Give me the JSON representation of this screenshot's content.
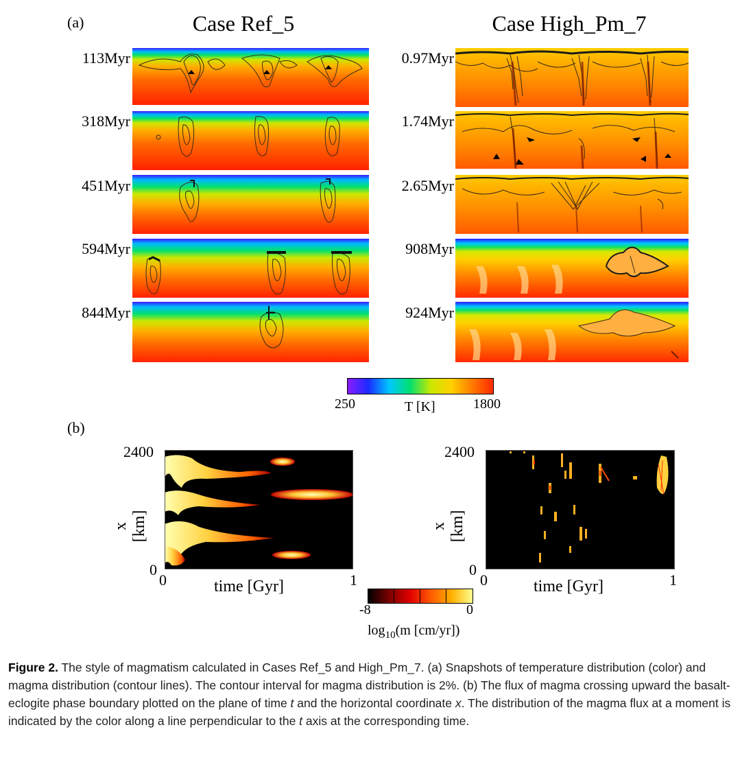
{
  "panel_a": {
    "label": "(a)",
    "cases": [
      {
        "title": "Case Ref_5",
        "snapshots": [
          "113Myr",
          "318Myr",
          "451Myr",
          "594Myr",
          "844Myr"
        ]
      },
      {
        "title": "Case High_Pm_7",
        "snapshots": [
          "0.97Myr",
          "1.74Myr",
          "2.65Myr",
          "908Myr",
          "924Myr"
        ]
      }
    ],
    "colorbar": {
      "min": "250",
      "max": "1800",
      "label": "T [K]",
      "colors": [
        "#8a1cff",
        "#1a2cff",
        "#00c8ff",
        "#00e070",
        "#cbe800",
        "#ffd000",
        "#ff7a00",
        "#ff2a00"
      ]
    }
  },
  "panel_b": {
    "label": "(b)",
    "plots": [
      {
        "ylabel": "x [km]",
        "xlabel": "time [Gyr]",
        "y_max": "2400",
        "y_min": "0",
        "x_min": "0",
        "x_max": "1"
      },
      {
        "ylabel": "x [km]",
        "xlabel": "time [Gyr]",
        "y_max": "2400",
        "y_min": "0",
        "x_min": "0",
        "x_max": "1"
      }
    ],
    "colorbar": {
      "min": "-8",
      "max": "0",
      "label_main": "log",
      "label_sub": "10",
      "label_rest": "(m [cm/yr])",
      "colors": [
        "#000000",
        "#7a0000",
        "#e00000",
        "#ff5a00",
        "#ffb000",
        "#ffff90"
      ]
    }
  },
  "caption": {
    "figure": "Figure 2.",
    "text_1": " The style of magmatism calculated in Cases Ref_5 and High_Pm_7. (a) Snapshots of temperature distribution (color) and magma distribution (contour lines). The contour interval for magma distribution is 2%. (b) The flux of magma crossing upward the basalt-eclogite phase boundary plotted on the plane of time ",
    "t1": "t",
    "text_2": " and the horizontal coordinate ",
    "x1": "x",
    "text_3": ". The distribution of the magma flux at a moment is indicated by the color along a line perpendicular to the ",
    "t2": "t",
    "text_4": " axis at the corresponding time."
  }
}
